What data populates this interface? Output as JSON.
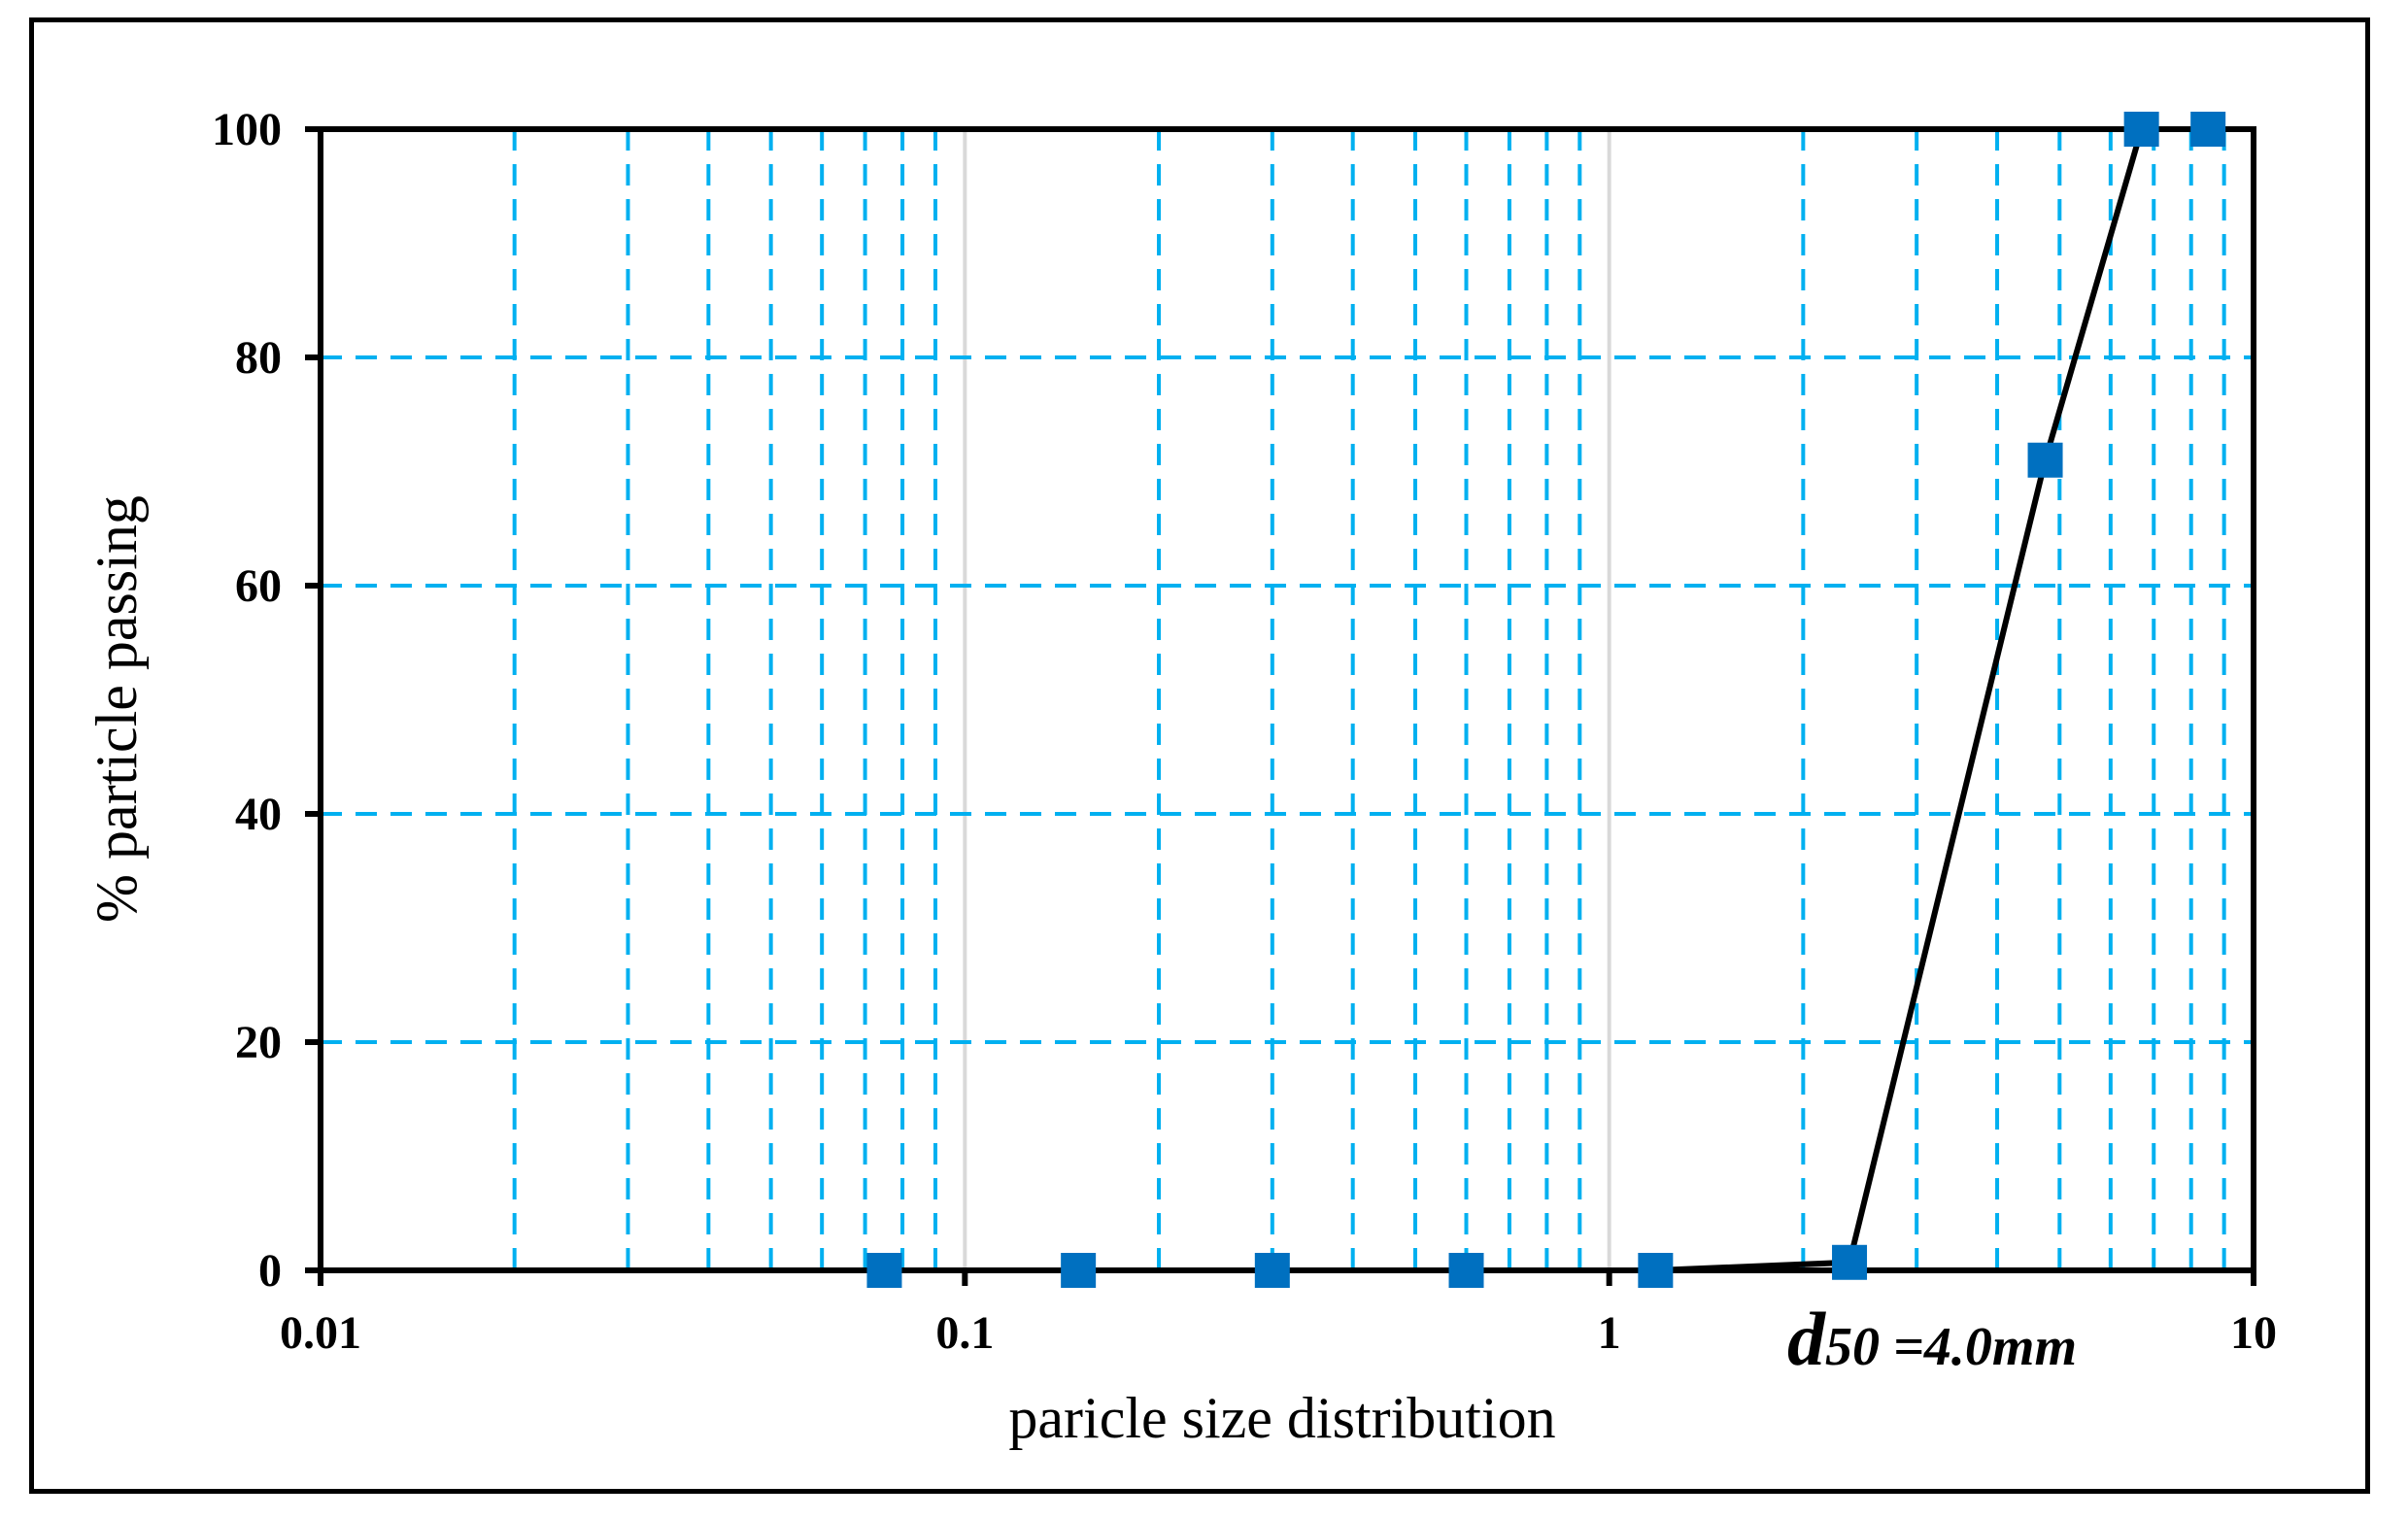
{
  "chart_data": {
    "type": "line",
    "xscale": "log",
    "xlim": [
      0.01,
      10
    ],
    "ylim": [
      0,
      100
    ],
    "xlabel": "paricle size distribution",
    "ylabel": "% particle passing",
    "x_ticks": [
      "0.01",
      "0.1",
      "1",
      "10"
    ],
    "y_ticks": [
      "0",
      "20",
      "40",
      "60",
      "80",
      "100"
    ],
    "grid": true,
    "series": [
      {
        "x": [
          0.075,
          0.15,
          0.3,
          0.6,
          1.18,
          2.36,
          4.75,
          6.7,
          8.5
        ],
        "y": [
          0,
          0,
          0,
          0,
          0,
          0.7,
          71,
          100,
          100
        ],
        "color": "#0070c0",
        "marker": "square",
        "line_color": "#000000"
      }
    ],
    "annotation": {
      "d": "d",
      "text": "50 =4.0mm"
    }
  },
  "colors": {
    "grid": "#00b0f0",
    "decade_grid": "#d9d9d9",
    "marker": "#0070c0",
    "line": "#000000"
  }
}
